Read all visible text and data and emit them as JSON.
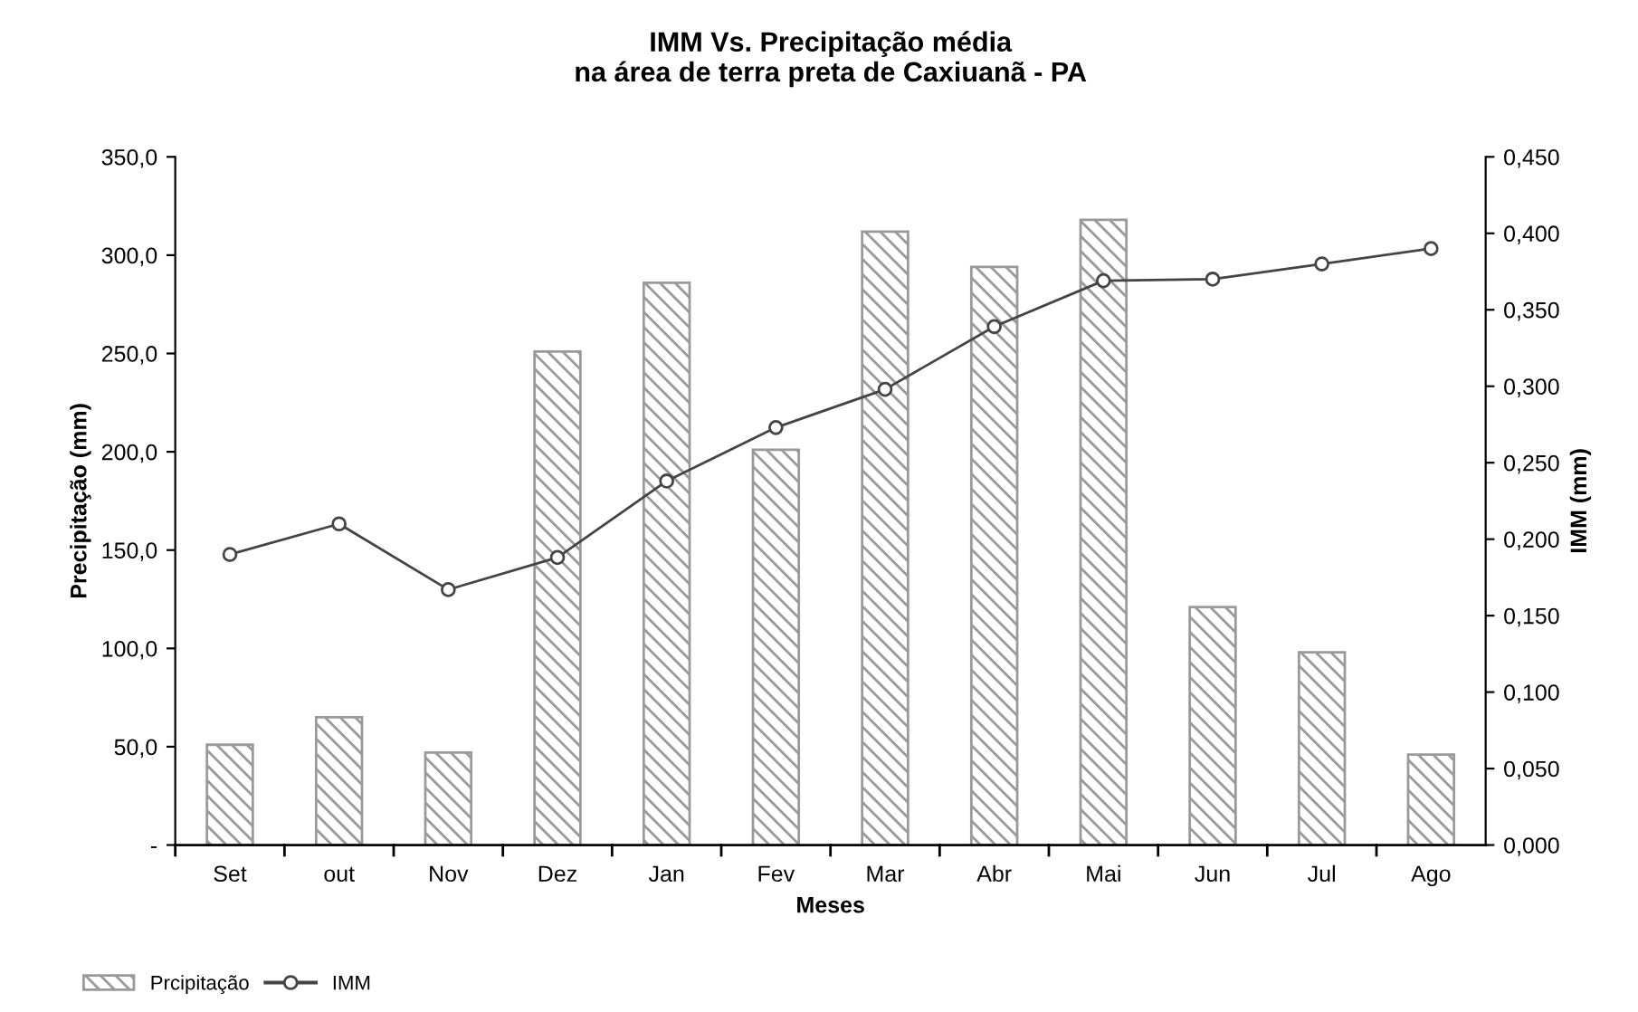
{
  "chart_data": {
    "type": "bar",
    "title": "IMM Vs. Precipitação média\nna área de terra preta de Caxiuanã - PA",
    "xlabel": "Meses",
    "ylabel": "Precipitação (mm)",
    "y2label": "IMM (mm)",
    "categories": [
      "Set",
      "out",
      "Nov",
      "Dez",
      "Jan",
      "Fev",
      "Mar",
      "Abr",
      "Mai",
      "Jun",
      "Jul",
      "Ago"
    ],
    "series": [
      {
        "name": "Prcipitação",
        "color": "#9a9a9a",
        "values": [
          51,
          65,
          47,
          251,
          286,
          201,
          312,
          294,
          318,
          121,
          98,
          46
        ]
      },
      {
        "name": "IMM",
        "type": "line",
        "axis": "y2",
        "color": "#444444",
        "marker": "circle",
        "values": [
          0.19,
          0.21,
          0.167,
          0.188,
          0.238,
          0.273,
          0.298,
          0.339,
          0.369,
          0.37,
          0.38,
          0.39
        ]
      }
    ],
    "ylim": [
      0,
      350
    ],
    "yticks": [
      {
        "value": 0,
        "label": "-"
      },
      {
        "value": 50,
        "label": "50,0"
      },
      {
        "value": 100,
        "label": "100,0"
      },
      {
        "value": 150,
        "label": "150,0"
      },
      {
        "value": 200,
        "label": "200,0"
      },
      {
        "value": 250,
        "label": "250,0"
      },
      {
        "value": 300,
        "label": "300,0"
      },
      {
        "value": 350,
        "label": "350,0"
      }
    ],
    "y2lim": [
      0,
      0.45
    ],
    "y2ticks": [
      {
        "value": 0,
        "label": "0,000"
      },
      {
        "value": 0.05,
        "label": "0,050"
      },
      {
        "value": 0.1,
        "label": "0,100"
      },
      {
        "value": 0.15,
        "label": "0,150"
      },
      {
        "value": 0.2,
        "label": "0,200"
      },
      {
        "value": 0.25,
        "label": "0,250"
      },
      {
        "value": 0.3,
        "label": "0,300"
      },
      {
        "value": 0.35,
        "label": "0,350"
      },
      {
        "value": 0.4,
        "label": "0,400"
      },
      {
        "value": 0.45,
        "label": "0,450"
      }
    ],
    "grid": false,
    "legend": "bottom left",
    "line_style": "solid"
  }
}
